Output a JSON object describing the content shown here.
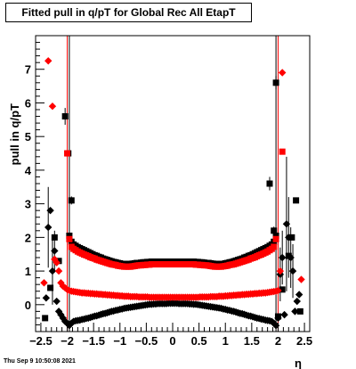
{
  "chart_data": {
    "type": "scatter",
    "title": "Fitted pull in q/pT for Global Rec All EtapT",
    "xlabel": "η",
    "ylabel": "pull in q/pT",
    "xlim": [
      -2.6,
      2.6
    ],
    "ylim": [
      -0.8,
      8.0
    ],
    "x_ticks": [
      -2.5,
      -2,
      -1.5,
      -1,
      -0.5,
      0,
      0.5,
      1,
      1.5,
      2,
      2.5
    ],
    "x_tick_labels": [
      "−2.5",
      "−2",
      "−1.5",
      "−1",
      "−0.5",
      "0",
      "0.5",
      "1",
      "1.5",
      "2",
      "2.5"
    ],
    "y_ticks": [
      0,
      1,
      2,
      3,
      4,
      5,
      6,
      7
    ],
    "y_tick_labels": [
      "0",
      "1",
      "2",
      "3",
      "4",
      "5",
      "6",
      "7"
    ],
    "grid": false,
    "legend": "none",
    "series": [
      {
        "marker": "square",
        "color": "#000000",
        "x": [
          -1.96,
          -1.92,
          -1.88,
          -1.84,
          -1.8,
          -1.76,
          -1.72,
          -1.68,
          -1.64,
          -1.6,
          -1.56,
          -1.52,
          -1.48,
          -1.44,
          -1.4,
          -1.36,
          -1.32,
          -1.28,
          -1.24,
          -1.2,
          -1.16,
          -1.12,
          -1.08,
          -1.04,
          -1.0,
          -0.96,
          -0.92,
          -0.88,
          -0.84,
          -0.8,
          -0.76,
          -0.72,
          -0.68,
          -0.64,
          -0.6,
          -0.56,
          -0.52,
          -0.48,
          -0.44,
          -0.4,
          -0.36,
          -0.32,
          -0.28,
          -0.24,
          -0.2,
          -0.16,
          -0.12,
          -0.08,
          -0.04,
          0.0,
          0.04,
          0.08,
          0.12,
          0.16,
          0.2,
          0.24,
          0.28,
          0.32,
          0.36,
          0.4,
          0.44,
          0.48,
          0.52,
          0.56,
          0.6,
          0.64,
          0.68,
          0.72,
          0.76,
          0.8,
          0.84,
          0.88,
          0.92,
          0.96,
          1.0,
          1.04,
          1.08,
          1.12,
          1.16,
          1.2,
          1.24,
          1.28,
          1.32,
          1.36,
          1.4,
          1.44,
          1.48,
          1.52,
          1.56,
          1.6,
          1.64,
          1.68,
          1.72,
          1.76,
          1.8,
          1.84,
          1.88,
          1.92,
          1.96
        ],
        "y": [
          2.05,
          1.87,
          1.79,
          1.75,
          1.71,
          1.68,
          1.65,
          1.62,
          1.59,
          1.56,
          1.53,
          1.5,
          1.47,
          1.45,
          1.42,
          1.4,
          1.37,
          1.35,
          1.33,
          1.31,
          1.29,
          1.27,
          1.26,
          1.24,
          1.23,
          1.21,
          1.21,
          1.21,
          1.21,
          1.21,
          1.22,
          1.23,
          1.24,
          1.24,
          1.25,
          1.26,
          1.26,
          1.27,
          1.27,
          1.28,
          1.28,
          1.28,
          1.28,
          1.28,
          1.28,
          1.28,
          1.28,
          1.28,
          1.28,
          1.28,
          1.28,
          1.28,
          1.28,
          1.28,
          1.28,
          1.28,
          1.28,
          1.28,
          1.28,
          1.28,
          1.27,
          1.27,
          1.26,
          1.26,
          1.25,
          1.24,
          1.24,
          1.23,
          1.22,
          1.21,
          1.21,
          1.21,
          1.21,
          1.21,
          1.23,
          1.24,
          1.26,
          1.27,
          1.29,
          1.31,
          1.33,
          1.35,
          1.37,
          1.4,
          1.42,
          1.45,
          1.47,
          1.5,
          1.53,
          1.56,
          1.59,
          1.62,
          1.65,
          1.68,
          1.71,
          1.75,
          1.79,
          1.87,
          2.05
        ]
      },
      {
        "marker": "square",
        "color": "#000000",
        "x": [
          -2.42,
          -2.32,
          -2.24,
          -2.16,
          -2.04,
          -1.98,
          -1.92,
          1.84,
          1.92,
          1.96,
          2.0,
          2.08,
          2.2,
          2.26,
          2.34,
          2.42
        ],
        "y": [
          -0.4,
          0.5,
          2.0,
          1.3,
          5.6,
          4.5,
          3.1,
          3.6,
          2.2,
          6.6,
          -0.35,
          0.45,
          1.45,
          2.0,
          3.1,
          -0.2
        ],
        "err": [
          0,
          0,
          0,
          0,
          0.25,
          0,
          0.12,
          0.2,
          0.12,
          0.2,
          0,
          0,
          0,
          0,
          0,
          0
        ]
      },
      {
        "marker": "diamond",
        "color": "#000000",
        "x": [
          -2.4,
          -2.36,
          -2.32,
          -2.28,
          -2.24,
          -2.2,
          -2.16,
          -2.12,
          -2.08,
          -2.04,
          -2.0,
          -1.96,
          -1.92,
          -1.88,
          -1.84,
          -1.8,
          -1.76,
          -1.72,
          -1.68,
          -1.64,
          -1.6,
          -1.56,
          -1.52,
          -1.48,
          -1.44,
          -1.4,
          -1.36,
          -1.32,
          -1.28,
          -1.24,
          -1.2,
          -1.16,
          -1.12,
          -1.08,
          -1.04,
          -1.0,
          -0.96,
          -0.92,
          -0.88,
          -0.84,
          -0.8,
          -0.76,
          -0.72,
          -0.68,
          -0.64,
          -0.6,
          -0.56,
          -0.52,
          -0.48,
          -0.44,
          -0.4,
          -0.36,
          -0.32,
          -0.28,
          -0.24,
          -0.2,
          -0.16,
          -0.12,
          -0.08,
          -0.04,
          0.0,
          0.04,
          0.08,
          0.12,
          0.16,
          0.2,
          0.24,
          0.28,
          0.32,
          0.36,
          0.4,
          0.44,
          0.48,
          0.52,
          0.56,
          0.6,
          0.64,
          0.68,
          0.72,
          0.76,
          0.8,
          0.84,
          0.88,
          0.92,
          0.96,
          1.0,
          1.04,
          1.08,
          1.12,
          1.16,
          1.2,
          1.24,
          1.28,
          1.32,
          1.36,
          1.4,
          1.44,
          1.48,
          1.52,
          1.56,
          1.6,
          1.64,
          1.68,
          1.72,
          1.76,
          1.8,
          1.84,
          1.88,
          1.92,
          1.96,
          2.0,
          2.04,
          2.08,
          2.12,
          2.16,
          2.2,
          2.24,
          2.28,
          2.32,
          2.36,
          2.4
        ],
        "y": [
          0.2,
          2.3,
          2.8,
          1.0,
          1.6,
          0.1,
          -0.2,
          -0.3,
          -0.4,
          -0.5,
          -0.55,
          -0.62,
          -0.55,
          -0.5,
          -0.48,
          -0.47,
          -0.46,
          -0.44,
          -0.43,
          -0.41,
          -0.4,
          -0.38,
          -0.36,
          -0.34,
          -0.33,
          -0.31,
          -0.29,
          -0.27,
          -0.26,
          -0.24,
          -0.22,
          -0.2,
          -0.19,
          -0.17,
          -0.16,
          -0.14,
          -0.13,
          -0.11,
          -0.1,
          -0.09,
          -0.08,
          -0.07,
          -0.06,
          -0.05,
          -0.04,
          -0.03,
          -0.02,
          -0.01,
          0.0,
          0.01,
          0.01,
          0.02,
          0.02,
          0.03,
          0.03,
          0.03,
          0.03,
          0.03,
          0.04,
          0.04,
          0.04,
          0.04,
          0.04,
          0.03,
          0.03,
          0.03,
          0.03,
          0.03,
          0.02,
          0.02,
          0.01,
          0.01,
          0.0,
          -0.01,
          -0.02,
          -0.03,
          -0.04,
          -0.05,
          -0.06,
          -0.07,
          -0.08,
          -0.09,
          -0.1,
          -0.11,
          -0.13,
          -0.14,
          -0.16,
          -0.17,
          -0.19,
          -0.2,
          -0.22,
          -0.24,
          -0.26,
          -0.27,
          -0.29,
          -0.31,
          -0.33,
          -0.34,
          -0.36,
          -0.38,
          -0.4,
          -0.41,
          -0.43,
          -0.44,
          -0.46,
          -0.47,
          -0.48,
          -0.5,
          -0.55,
          -0.62,
          -0.4,
          0.9,
          1.4,
          -0.3,
          2.4,
          2.0,
          1.4,
          1.0,
          -0.2,
          0.1,
          0.3
        ],
        "err": [
          0,
          1.2,
          0,
          1.0,
          0.6,
          0,
          0,
          0,
          0,
          0,
          0,
          0,
          0,
          0,
          0,
          0,
          0,
          0,
          0,
          0,
          0,
          0,
          0,
          0,
          0,
          0,
          0,
          0,
          0,
          0,
          0,
          0,
          0,
          0,
          0,
          0,
          0,
          0,
          0,
          0,
          0,
          0,
          0,
          0,
          0,
          0,
          0,
          0,
          0,
          0,
          0,
          0,
          0,
          0,
          0,
          0,
          0,
          0,
          0,
          0,
          0,
          0,
          0,
          0,
          0,
          0,
          0,
          0,
          0,
          0,
          0,
          0,
          0,
          0,
          0,
          0,
          0,
          0,
          0,
          0,
          0,
          0,
          0,
          0,
          0,
          0,
          0,
          0,
          0,
          0,
          0,
          0,
          0,
          0,
          0,
          0,
          0,
          0,
          0,
          0,
          0,
          0,
          0,
          0,
          0,
          0,
          0,
          0,
          0,
          0,
          0,
          0.8,
          0.8,
          0,
          2.0,
          1.2,
          0.9,
          0.8,
          0,
          0,
          0
        ]
      },
      {
        "marker": "square",
        "color": "#ff0000",
        "x": [
          -1.96,
          -1.92,
          -1.88,
          -1.84,
          -1.8,
          -1.76,
          -1.72,
          -1.68,
          -1.64,
          -1.6,
          -1.56,
          -1.52,
          -1.48,
          -1.44,
          -1.4,
          -1.36,
          -1.32,
          -1.28,
          -1.24,
          -1.2,
          -1.16,
          -1.12,
          -1.08,
          -1.04,
          -1.0,
          -0.96,
          -0.92,
          -0.88,
          -0.84,
          -0.8,
          -0.76,
          -0.72,
          -0.68,
          -0.64,
          -0.6,
          -0.56,
          -0.52,
          -0.48,
          -0.44,
          -0.4,
          -0.36,
          -0.32,
          -0.28,
          -0.24,
          -0.2,
          -0.16,
          -0.12,
          -0.08,
          -0.04,
          0.0,
          0.04,
          0.08,
          0.12,
          0.16,
          0.2,
          0.24,
          0.28,
          0.32,
          0.36,
          0.4,
          0.44,
          0.48,
          0.52,
          0.56,
          0.6,
          0.64,
          0.68,
          0.72,
          0.76,
          0.8,
          0.84,
          0.88,
          0.92,
          0.96,
          1.0,
          1.04,
          1.08,
          1.12,
          1.16,
          1.2,
          1.24,
          1.28,
          1.32,
          1.36,
          1.4,
          1.44,
          1.48,
          1.52,
          1.56,
          1.6,
          1.64,
          1.68,
          1.72,
          1.76,
          1.8,
          1.84,
          1.88,
          1.92,
          1.96
        ],
        "y": [
          1.95,
          1.72,
          1.66,
          1.62,
          1.58,
          1.55,
          1.52,
          1.49,
          1.47,
          1.44,
          1.41,
          1.39,
          1.37,
          1.34,
          1.32,
          1.3,
          1.28,
          1.26,
          1.24,
          1.22,
          1.2,
          1.19,
          1.18,
          1.16,
          1.15,
          1.14,
          1.13,
          1.13,
          1.13,
          1.13,
          1.14,
          1.15,
          1.16,
          1.17,
          1.17,
          1.18,
          1.18,
          1.19,
          1.19,
          1.2,
          1.2,
          1.2,
          1.2,
          1.2,
          1.2,
          1.2,
          1.2,
          1.2,
          1.2,
          1.2,
          1.2,
          1.2,
          1.2,
          1.2,
          1.2,
          1.2,
          1.2,
          1.2,
          1.2,
          1.2,
          1.19,
          1.19,
          1.18,
          1.18,
          1.17,
          1.17,
          1.16,
          1.15,
          1.14,
          1.13,
          1.13,
          1.13,
          1.13,
          1.14,
          1.15,
          1.16,
          1.18,
          1.19,
          1.2,
          1.22,
          1.24,
          1.26,
          1.28,
          1.3,
          1.32,
          1.34,
          1.37,
          1.39,
          1.41,
          1.44,
          1.47,
          1.49,
          1.52,
          1.55,
          1.58,
          1.62,
          1.66,
          1.72,
          1.95
        ]
      },
      {
        "marker": "square",
        "color": "#ff0000",
        "x": [
          -2.0,
          2.08
        ],
        "y": [
          4.5,
          4.55
        ]
      },
      {
        "marker": "diamond",
        "color": "#ff0000",
        "x": [
          -2.44,
          -2.36,
          -2.28,
          -2.24,
          -2.2,
          -2.16,
          -2.12,
          -2.08,
          -2.04,
          -2.0,
          -1.96,
          -1.92,
          -1.88,
          -1.84,
          -1.8,
          -1.76,
          -1.72,
          -1.68,
          -1.64,
          -1.6,
          -1.56,
          -1.52,
          -1.48,
          -1.44,
          -1.4,
          -1.36,
          -1.32,
          -1.28,
          -1.24,
          -1.2,
          -1.16,
          -1.12,
          -1.08,
          -1.04,
          -1.0,
          -0.96,
          -0.92,
          -0.88,
          -0.84,
          -0.8,
          -0.76,
          -0.72,
          -0.68,
          -0.64,
          -0.6,
          -0.56,
          -0.52,
          -0.48,
          -0.44,
          -0.4,
          -0.36,
          -0.32,
          -0.28,
          -0.24,
          -0.2,
          -0.16,
          -0.12,
          -0.08,
          -0.04,
          0.0,
          0.04,
          0.08,
          0.12,
          0.16,
          0.2,
          0.24,
          0.28,
          0.32,
          0.36,
          0.4,
          0.44,
          0.48,
          0.52,
          0.56,
          0.6,
          0.64,
          0.68,
          0.72,
          0.76,
          0.8,
          0.84,
          0.88,
          0.92,
          0.96,
          1.0,
          1.04,
          1.08,
          1.12,
          1.16,
          1.2,
          1.24,
          1.28,
          1.32,
          1.36,
          1.4,
          1.44,
          1.48,
          1.52,
          1.56,
          1.6,
          1.64,
          1.68,
          1.72,
          1.76,
          1.8,
          1.84,
          1.88,
          1.92,
          1.96,
          2.0,
          2.04,
          2.08,
          2.44
        ],
        "y": [
          0.65,
          7.25,
          5.9,
          1.35,
          1.25,
          1.0,
          0.65,
          0.55,
          0.5,
          0.45,
          0.42,
          0.4,
          0.39,
          0.38,
          0.37,
          0.36,
          0.35,
          0.35,
          0.34,
          0.34,
          0.33,
          0.33,
          0.32,
          0.32,
          0.31,
          0.31,
          0.3,
          0.3,
          0.29,
          0.29,
          0.28,
          0.28,
          0.27,
          0.27,
          0.26,
          0.26,
          0.25,
          0.25,
          0.25,
          0.24,
          0.24,
          0.24,
          0.24,
          0.23,
          0.23,
          0.23,
          0.23,
          0.23,
          0.22,
          0.22,
          0.22,
          0.22,
          0.22,
          0.22,
          0.22,
          0.22,
          0.22,
          0.22,
          0.22,
          0.22,
          0.22,
          0.22,
          0.22,
          0.22,
          0.22,
          0.22,
          0.22,
          0.22,
          0.22,
          0.22,
          0.22,
          0.22,
          0.23,
          0.23,
          0.23,
          0.23,
          0.23,
          0.24,
          0.24,
          0.24,
          0.24,
          0.25,
          0.25,
          0.25,
          0.26,
          0.26,
          0.27,
          0.27,
          0.28,
          0.28,
          0.29,
          0.29,
          0.3,
          0.3,
          0.31,
          0.31,
          0.32,
          0.32,
          0.33,
          0.33,
          0.34,
          0.34,
          0.35,
          0.35,
          0.36,
          0.37,
          0.38,
          0.39,
          0.4,
          0.42,
          1.0,
          6.9,
          0.75
        ]
      }
    ],
    "vertical_lines": [
      {
        "x": -2.0,
        "color": "#ff0000"
      },
      {
        "x": -1.96,
        "color": "#000000"
      },
      {
        "x": 1.96,
        "color": "#000000"
      },
      {
        "x": 2.0,
        "color": "#ff0000"
      }
    ]
  },
  "footer": {
    "timestamp": "Thu Sep  9 10:50:08 2021"
  }
}
